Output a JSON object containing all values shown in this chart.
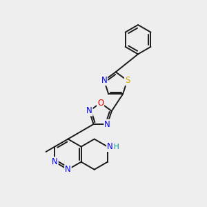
{
  "background_color": "#eeeeee",
  "bond_color": "#1a1a1a",
  "bond_width": 1.4,
  "atom_colors": {
    "N": "#0000ee",
    "O": "#dd0000",
    "S": "#ccaa00",
    "NH": "#008888",
    "C": "#1a1a1a"
  },
  "font_size": 8.5,
  "fig_width": 3.0,
  "fig_height": 3.0,
  "xlim": [
    0,
    10
  ],
  "ylim": [
    0,
    10
  ]
}
